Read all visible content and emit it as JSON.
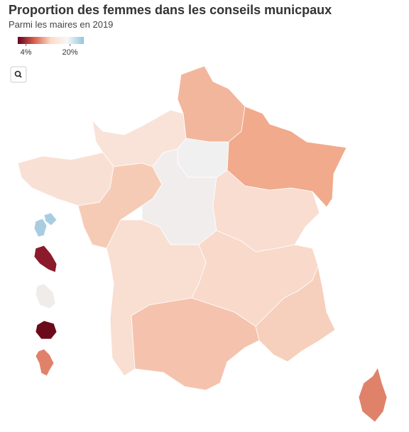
{
  "map": {
    "title": "Proportion des femmes dans les conseils municpaux",
    "subtitle": "Parmi les maires en 2019",
    "legend": {
      "domain": [
        1,
        25
      ],
      "colors": [
        "#67001f",
        "#d6604d",
        "#fddbc7",
        "#f7f7f7",
        "#92c5de"
      ],
      "ticks": [
        {
          "value": 4,
          "label": "4%"
        },
        {
          "value": 20,
          "label": "20%"
        }
      ]
    }
  }
}
